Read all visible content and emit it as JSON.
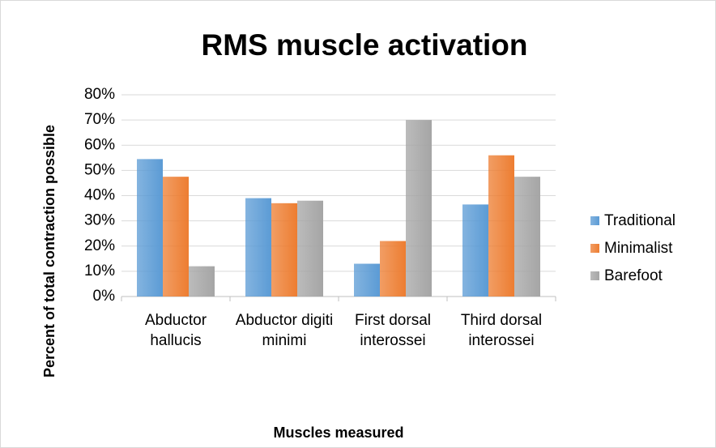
{
  "chart_data": {
    "type": "bar",
    "title": "RMS muscle activation",
    "x_label": "Muscles measured",
    "y_label": "Percent of total contraction possible",
    "categories": [
      "Abductor hallucis",
      "Abductor digiti minimi",
      "First dorsal interossei",
      "Third dorsal interossei"
    ],
    "series": [
      {
        "name": "Traditional",
        "color": "#5b9bd5",
        "values": [
          54.5,
          39,
          13,
          36.5
        ]
      },
      {
        "name": "Minimalist",
        "color": "#ed7d31",
        "values": [
          47.5,
          37,
          22,
          56
        ]
      },
      {
        "name": "Barefoot",
        "color": "#a5a5a5",
        "values": [
          12,
          38,
          70,
          47.5
        ]
      }
    ],
    "ylim": [
      0,
      80
    ],
    "yticks": [
      {
        "value": 0,
        "label": "0%"
      },
      {
        "value": 10,
        "label": "10%"
      },
      {
        "value": 20,
        "label": "20%"
      },
      {
        "value": 30,
        "label": "30%"
      },
      {
        "value": 40,
        "label": "40%"
      },
      {
        "value": 50,
        "label": "50%"
      },
      {
        "value": 60,
        "label": "60%"
      },
      {
        "value": 70,
        "label": "70%"
      },
      {
        "value": 80,
        "label": "80%"
      }
    ],
    "grid": true,
    "legend": "right"
  }
}
